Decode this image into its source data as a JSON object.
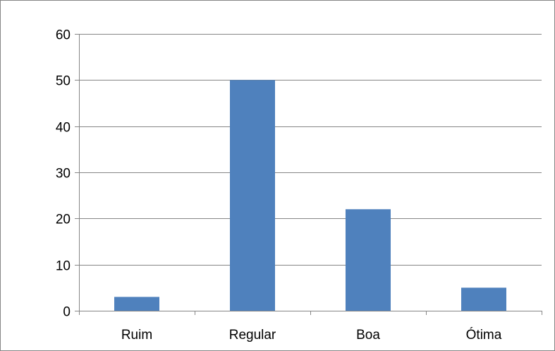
{
  "chart_data": {
    "type": "bar",
    "title": "",
    "xlabel": "",
    "ylabel": "",
    "categories": [
      "Ruim",
      "Regular",
      "Boa",
      "Ótima"
    ],
    "values": [
      3,
      50,
      22,
      5
    ],
    "ylim": [
      0,
      60
    ],
    "yticks": [
      0,
      10,
      20,
      30,
      40,
      50,
      60
    ],
    "ytick_labels": [
      "0",
      "10",
      "20",
      "30",
      "40",
      "50",
      "60"
    ],
    "grid": true,
    "legend": "none",
    "colors": {
      "bar": "#4F81BD",
      "grid": "#868686",
      "axis": "#868686"
    }
  }
}
